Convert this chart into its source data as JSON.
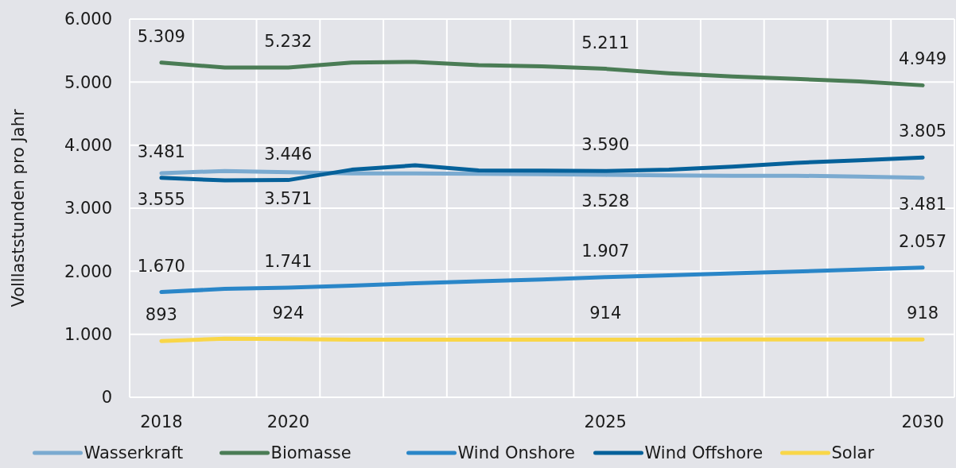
{
  "chart_data": {
    "type": "line",
    "ylabel": "Volllaststunden pro Jahr",
    "categories": [
      "2018",
      null,
      "2020",
      null,
      null,
      null,
      null,
      "2025",
      null,
      null,
      null,
      null,
      "2030"
    ],
    "ylim": [
      0,
      6000
    ],
    "yticks": [
      {
        "value": 0,
        "label": "0"
      },
      {
        "value": 1000,
        "label": "1.000"
      },
      {
        "value": 2000,
        "label": "2.000"
      },
      {
        "value": 3000,
        "label": "3.000"
      },
      {
        "value": 4000,
        "label": "4.000"
      },
      {
        "value": 5000,
        "label": "5.000"
      },
      {
        "value": 6000,
        "label": "6.000"
      }
    ],
    "grid": true,
    "legend": "bottom",
    "marker": "none",
    "line_style": "solid",
    "series": [
      {
        "name": "Wasserkraft",
        "color": "#7aaad0",
        "values": [
          3555,
          3590,
          3571,
          3550,
          3550,
          3545,
          3540,
          3528,
          3520,
          3515,
          3515,
          3500,
          3481
        ],
        "value_labels": [
          "3.555",
          null,
          "3.571",
          null,
          null,
          null,
          null,
          "3.528",
          null,
          null,
          null,
          null,
          "3.481"
        ]
      },
      {
        "name": "Biomasse",
        "color": "#4a7c55",
        "values": [
          5309,
          5230,
          5232,
          5310,
          5320,
          5270,
          5250,
          5211,
          5140,
          5090,
          5050,
          5010,
          4949
        ],
        "value_labels": [
          "5.309",
          null,
          "5.232",
          null,
          null,
          null,
          null,
          "5.211",
          null,
          null,
          null,
          null,
          "4.949"
        ]
      },
      {
        "name": "Wind Onshore",
        "color": "#2a86c8",
        "values": [
          1670,
          1720,
          1741,
          1770,
          1810,
          1840,
          1870,
          1907,
          1935,
          1965,
          1995,
          2025,
          2057
        ],
        "value_labels": [
          "1.670",
          null,
          "1.741",
          null,
          null,
          null,
          null,
          "1.907",
          null,
          null,
          null,
          null,
          "2.057"
        ]
      },
      {
        "name": "Wind Offshore",
        "color": "#05619a",
        "values": [
          3481,
          3440,
          3446,
          3610,
          3680,
          3600,
          3595,
          3590,
          3610,
          3660,
          3720,
          3760,
          3805
        ],
        "value_labels": [
          "3.481",
          null,
          "3.446",
          null,
          null,
          null,
          null,
          "3.590",
          null,
          null,
          null,
          null,
          "3.805"
        ]
      },
      {
        "name": "Solar",
        "color": "#f9d648",
        "values": [
          893,
          930,
          924,
          915,
          914,
          914,
          914,
          914,
          915,
          916,
          917,
          917,
          918
        ],
        "value_labels": [
          "893",
          null,
          "924",
          null,
          null,
          null,
          null,
          "914",
          null,
          null,
          null,
          null,
          "918"
        ]
      }
    ]
  }
}
